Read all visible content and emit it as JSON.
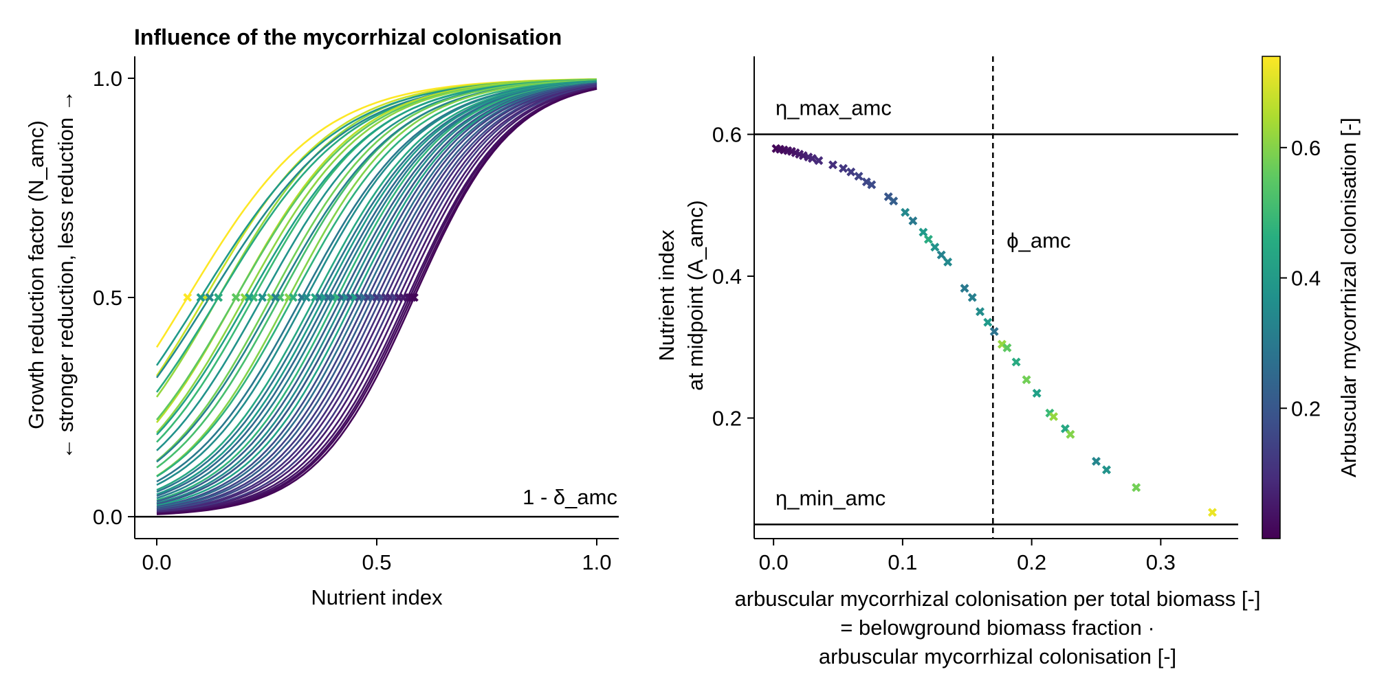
{
  "chart_data": [
    {
      "type": "line",
      "title": "Influence of the mycorrhizal colonisation",
      "xlabel": "Nutrient index",
      "ylabel_lines": [
        "Growth reduction factor (N_amc)",
        "← stronger reduction, less reduction →"
      ],
      "xlim": [
        -0.05,
        1.05
      ],
      "ylim": [
        -0.05,
        1.05
      ],
      "xticks": [
        0.0,
        0.5,
        1.0
      ],
      "xtick_labels": [
        "0.0",
        "0.5",
        "1.0"
      ],
      "yticks": [
        0.0,
        0.5,
        1.0
      ],
      "ytick_labels": [
        "0.0",
        "0.5",
        "1.0"
      ],
      "hline": {
        "y": 0.0,
        "label": "1 - δ_amc"
      },
      "curve_family": "logistic growth reduction curves, one per plant, colored by arbuscular mycorrhizal colonisation",
      "midpoint_markers": {
        "y": 0.5,
        "marker": "x"
      },
      "series": [
        {
          "amc": 0.74,
          "x0": 0.07,
          "k": 6.6
        },
        {
          "amc": 0.68,
          "x0": 0.11,
          "k": 6.8
        },
        {
          "amc": 0.62,
          "x0": 0.14,
          "k": 7.0
        },
        {
          "amc": 0.4,
          "x0": 0.1,
          "k": 6.4
        },
        {
          "amc": 0.45,
          "x0": 0.14,
          "k": 6.6
        },
        {
          "amc": 0.35,
          "x0": 0.12,
          "k": 6.4
        },
        {
          "amc": 0.66,
          "x0": 0.18,
          "k": 7.2
        },
        {
          "amc": 0.55,
          "x0": 0.18,
          "k": 7.0
        },
        {
          "amc": 0.61,
          "x0": 0.2,
          "k": 7.2
        },
        {
          "amc": 0.5,
          "x0": 0.22,
          "k": 7.2
        },
        {
          "amc": 0.42,
          "x0": 0.21,
          "k": 7.0
        },
        {
          "amc": 0.38,
          "x0": 0.24,
          "k": 7.2
        },
        {
          "amc": 0.58,
          "x0": 0.26,
          "k": 7.4
        },
        {
          "amc": 0.52,
          "x0": 0.28,
          "k": 7.4
        },
        {
          "amc": 0.33,
          "x0": 0.27,
          "k": 7.2
        },
        {
          "amc": 0.6,
          "x0": 0.3,
          "k": 7.6
        },
        {
          "amc": 0.47,
          "x0": 0.31,
          "k": 7.4
        },
        {
          "amc": 0.3,
          "x0": 0.33,
          "k": 7.4
        },
        {
          "amc": 0.36,
          "x0": 0.34,
          "k": 7.5
        },
        {
          "amc": 0.44,
          "x0": 0.36,
          "k": 7.6
        },
        {
          "amc": 0.28,
          "x0": 0.37,
          "k": 7.6
        },
        {
          "amc": 0.4,
          "x0": 0.38,
          "k": 7.7
        },
        {
          "amc": 0.25,
          "x0": 0.39,
          "k": 7.7
        },
        {
          "amc": 0.32,
          "x0": 0.4,
          "k": 7.8
        },
        {
          "amc": 0.48,
          "x0": 0.41,
          "k": 7.9
        },
        {
          "amc": 0.22,
          "x0": 0.42,
          "k": 7.9
        },
        {
          "amc": 0.36,
          "x0": 0.43,
          "k": 8.0
        },
        {
          "amc": 0.52,
          "x0": 0.44,
          "k": 8.0
        },
        {
          "amc": 0.2,
          "x0": 0.44,
          "k": 8.0
        },
        {
          "amc": 0.42,
          "x0": 0.45,
          "k": 8.1
        },
        {
          "amc": 0.18,
          "x0": 0.46,
          "k": 8.2
        },
        {
          "amc": 0.27,
          "x0": 0.47,
          "k": 8.2
        },
        {
          "amc": 0.15,
          "x0": 0.48,
          "k": 8.3
        },
        {
          "amc": 0.22,
          "x0": 0.49,
          "k": 8.3
        },
        {
          "amc": 0.12,
          "x0": 0.5,
          "k": 8.4
        },
        {
          "amc": 0.17,
          "x0": 0.51,
          "k": 8.4
        },
        {
          "amc": 0.1,
          "x0": 0.52,
          "k": 8.5
        },
        {
          "amc": 0.08,
          "x0": 0.53,
          "k": 8.5
        },
        {
          "amc": 0.13,
          "x0": 0.54,
          "k": 8.6
        },
        {
          "amc": 0.06,
          "x0": 0.55,
          "k": 8.6
        },
        {
          "amc": 0.05,
          "x0": 0.56,
          "k": 8.7
        },
        {
          "amc": 0.04,
          "x0": 0.57,
          "k": 8.7
        },
        {
          "amc": 0.03,
          "x0": 0.575,
          "k": 8.8
        },
        {
          "amc": 0.02,
          "x0": 0.58,
          "k": 8.8
        },
        {
          "amc": 0.01,
          "x0": 0.585,
          "k": 8.9
        }
      ]
    },
    {
      "type": "scatter",
      "ylabel_lines": [
        "Nutrient index",
        "at midpoint (A_amc)"
      ],
      "xlabel_lines": [
        "arbuscular mycorrhizal colonisation per total biomass [-]",
        "= belowground biomass fraction ·",
        "arbuscular mycorrhizal colonisation [-]"
      ],
      "xlim": [
        -0.015,
        0.36
      ],
      "ylim": [
        0.03,
        0.71
      ],
      "xticks": [
        0.0,
        0.1,
        0.2,
        0.3
      ],
      "xtick_labels": [
        "0.0",
        "0.1",
        "0.2",
        "0.3"
      ],
      "yticks": [
        0.2,
        0.4,
        0.6
      ],
      "ytick_labels": [
        "0.2",
        "0.4",
        "0.6"
      ],
      "hlines": [
        {
          "y": 0.6,
          "label": "η_max_amc"
        },
        {
          "y": 0.05,
          "label": "η_min_amc"
        }
      ],
      "vline": {
        "x": 0.17,
        "label": "ϕ_amc",
        "style": "dashed"
      },
      "marker": "x",
      "points": [
        {
          "x": 0.002,
          "y": 0.58,
          "c": 0.01
        },
        {
          "x": 0.005,
          "y": 0.579,
          "c": 0.02
        },
        {
          "x": 0.008,
          "y": 0.578,
          "c": 0.02
        },
        {
          "x": 0.011,
          "y": 0.577,
          "c": 0.03
        },
        {
          "x": 0.014,
          "y": 0.576,
          "c": 0.03
        },
        {
          "x": 0.017,
          "y": 0.574,
          "c": 0.04
        },
        {
          "x": 0.02,
          "y": 0.572,
          "c": 0.05
        },
        {
          "x": 0.023,
          "y": 0.57,
          "c": 0.06
        },
        {
          "x": 0.027,
          "y": 0.568,
          "c": 0.07
        },
        {
          "x": 0.03,
          "y": 0.566,
          "c": 0.08
        },
        {
          "x": 0.035,
          "y": 0.563,
          "c": 0.09
        },
        {
          "x": 0.046,
          "y": 0.557,
          "c": 0.1
        },
        {
          "x": 0.054,
          "y": 0.552,
          "c": 0.12
        },
        {
          "x": 0.06,
          "y": 0.547,
          "c": 0.13
        },
        {
          "x": 0.066,
          "y": 0.541,
          "c": 0.15
        },
        {
          "x": 0.072,
          "y": 0.533,
          "c": 0.16
        },
        {
          "x": 0.076,
          "y": 0.529,
          "c": 0.17
        },
        {
          "x": 0.089,
          "y": 0.512,
          "c": 0.2
        },
        {
          "x": 0.093,
          "y": 0.506,
          "c": 0.22
        },
        {
          "x": 0.102,
          "y": 0.49,
          "c": 0.35
        },
        {
          "x": 0.108,
          "y": 0.478,
          "c": 0.3
        },
        {
          "x": 0.116,
          "y": 0.462,
          "c": 0.4
        },
        {
          "x": 0.12,
          "y": 0.452,
          "c": 0.45
        },
        {
          "x": 0.125,
          "y": 0.441,
          "c": 0.38
        },
        {
          "x": 0.13,
          "y": 0.43,
          "c": 0.33
        },
        {
          "x": 0.135,
          "y": 0.42,
          "c": 0.35
        },
        {
          "x": 0.148,
          "y": 0.383,
          "c": 0.3
        },
        {
          "x": 0.154,
          "y": 0.37,
          "c": 0.32
        },
        {
          "x": 0.16,
          "y": 0.35,
          "c": 0.36
        },
        {
          "x": 0.166,
          "y": 0.335,
          "c": 0.4
        },
        {
          "x": 0.171,
          "y": 0.322,
          "c": 0.28
        },
        {
          "x": 0.177,
          "y": 0.304,
          "c": 0.62
        },
        {
          "x": 0.181,
          "y": 0.299,
          "c": 0.55
        },
        {
          "x": 0.188,
          "y": 0.279,
          "c": 0.45
        },
        {
          "x": 0.196,
          "y": 0.254,
          "c": 0.58
        },
        {
          "x": 0.204,
          "y": 0.235,
          "c": 0.42
        },
        {
          "x": 0.214,
          "y": 0.207,
          "c": 0.5
        },
        {
          "x": 0.217,
          "y": 0.202,
          "c": 0.62
        },
        {
          "x": 0.226,
          "y": 0.185,
          "c": 0.44
        },
        {
          "x": 0.23,
          "y": 0.177,
          "c": 0.6
        },
        {
          "x": 0.25,
          "y": 0.139,
          "c": 0.34
        },
        {
          "x": 0.258,
          "y": 0.127,
          "c": 0.38
        },
        {
          "x": 0.281,
          "y": 0.102,
          "c": 0.58
        },
        {
          "x": 0.34,
          "y": 0.067,
          "c": 0.72
        }
      ],
      "colorbar": {
        "label": "Arbuscular mycorrhizal colonisation [-]",
        "range": [
          0.0,
          0.74
        ],
        "ticks": [
          0.2,
          0.4,
          0.6
        ],
        "tick_labels": [
          "0.2",
          "0.4",
          "0.6"
        ],
        "colormap": "viridis"
      }
    }
  ]
}
